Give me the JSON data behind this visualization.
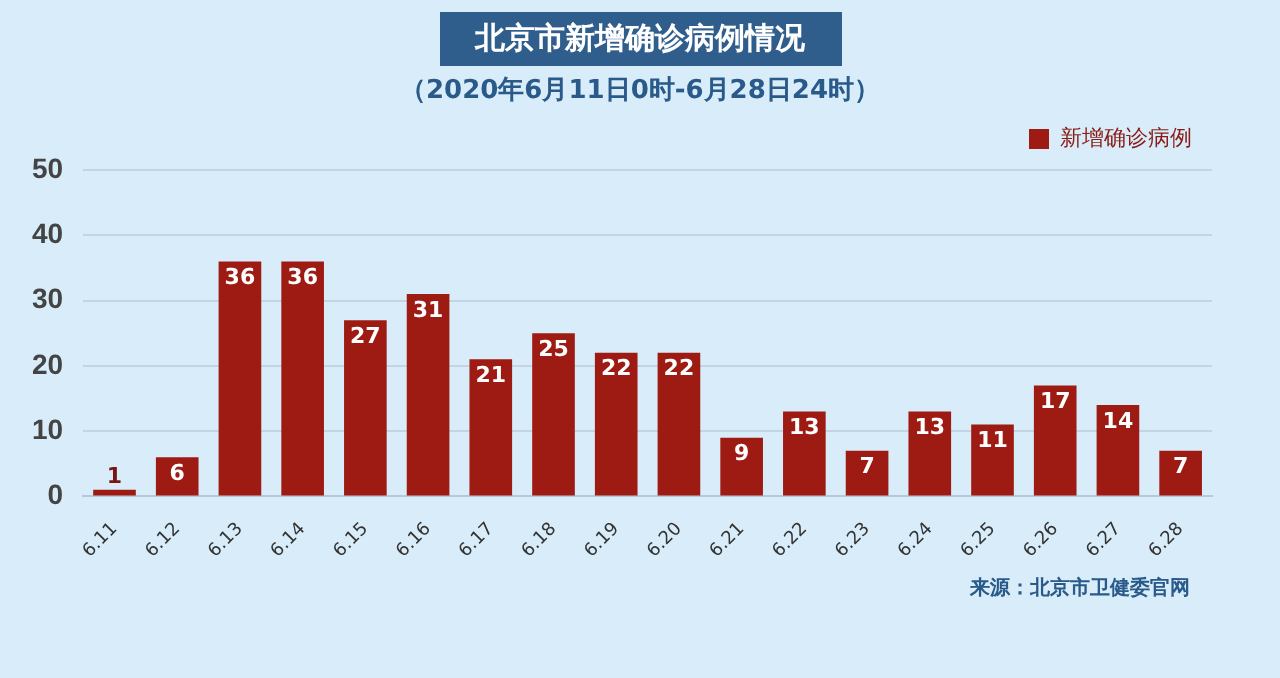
{
  "chart_data": {
    "type": "bar",
    "title": "北京市新增确诊病例情况",
    "subtitle": "（2020年6月11日0时-6月28日24时）",
    "categories": [
      "6.11",
      "6.12",
      "6.13",
      "6.14",
      "6.15",
      "6.16",
      "6.17",
      "6.18",
      "6.19",
      "6.20",
      "6.21",
      "6.22",
      "6.23",
      "6.24",
      "6.25",
      "6.26",
      "6.27",
      "6.28"
    ],
    "series": [
      {
        "name": "新增确诊病例",
        "color": "#9e1b14",
        "values": [
          1,
          6,
          36,
          36,
          27,
          31,
          21,
          25,
          22,
          22,
          9,
          13,
          7,
          13,
          11,
          17,
          14,
          7
        ]
      }
    ],
    "ylim": [
      0,
      50
    ],
    "yticks": [
      0,
      10,
      20,
      30,
      40,
      50
    ],
    "grid": "y",
    "legend": "top right",
    "data_labels": true,
    "annotations": [
      "来源：北京市卫健委官网"
    ]
  }
}
